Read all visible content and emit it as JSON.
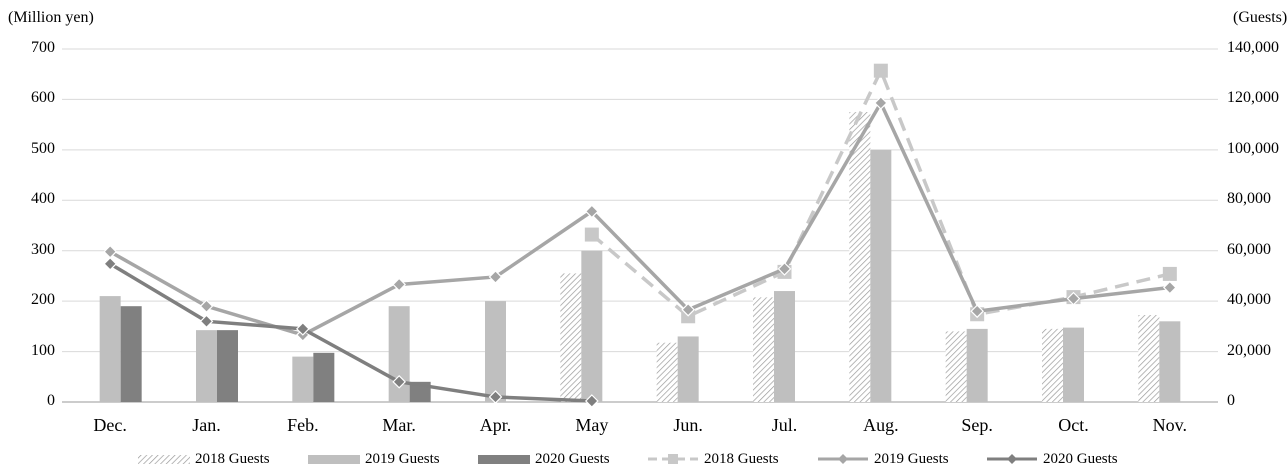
{
  "chart_data": {
    "type": "bar",
    "categories": [
      "Dec.",
      "Jan.",
      "Feb.",
      "Mar.",
      "Apr.",
      "May",
      "Jun.",
      "Jul.",
      "Aug.",
      "Sep.",
      "Oct.",
      "Nov."
    ],
    "left_axis_unit": "(Million  yen)",
    "right_axis_unit": "(Guests)",
    "ylim_left": [
      0,
      700
    ],
    "ylim_right": [
      0,
      140000
    ],
    "left_ticks": [
      "0",
      "100",
      "200",
      "300",
      "400",
      "500",
      "600",
      "700"
    ],
    "right_ticks": [
      "0",
      "20,000",
      "40,000",
      "60,000",
      "80,000",
      "100,000",
      "120,000",
      "140,000"
    ],
    "grid": true,
    "legend_position": "bottom",
    "bar_series": [
      {
        "name": "2018 Guests",
        "color": "#d0d0d0",
        "pattern": "hatched",
        "values": [
          null,
          null,
          null,
          null,
          null,
          51000,
          23500,
          41500,
          115000,
          28000,
          29000,
          34500
        ]
      },
      {
        "name": "2019 Guests",
        "color": "#bfbfbf",
        "values": [
          42000,
          28500,
          18000,
          38000,
          40000,
          60000,
          26000,
          44000,
          100000,
          29000,
          29500,
          32000
        ]
      },
      {
        "name": "2020 Guests",
        "color": "#808080",
        "values": [
          38000,
          28500,
          19500,
          8000,
          null,
          null,
          null,
          null,
          null,
          null,
          null,
          null
        ]
      }
    ],
    "line_series": [
      {
        "name": "2018 Guests",
        "color": "#c8c8c8",
        "style": "dashed",
        "marker": "square",
        "values": [
          null,
          null,
          null,
          null,
          null,
          332,
          170,
          258,
          657,
          174,
          208,
          254
        ]
      },
      {
        "name": "2019 Guests",
        "color": "#a6a6a6",
        "style": "solid",
        "marker": "diamond",
        "values": [
          298,
          190,
          133,
          233,
          248,
          378,
          183,
          264,
          593,
          180,
          205,
          227
        ]
      },
      {
        "name": "2020 Guests",
        "color": "#7f7f7f",
        "style": "solid",
        "marker": "diamond",
        "values": [
          274,
          160,
          145,
          40,
          10,
          2,
          null,
          null,
          null,
          null,
          null,
          null
        ]
      }
    ]
  }
}
